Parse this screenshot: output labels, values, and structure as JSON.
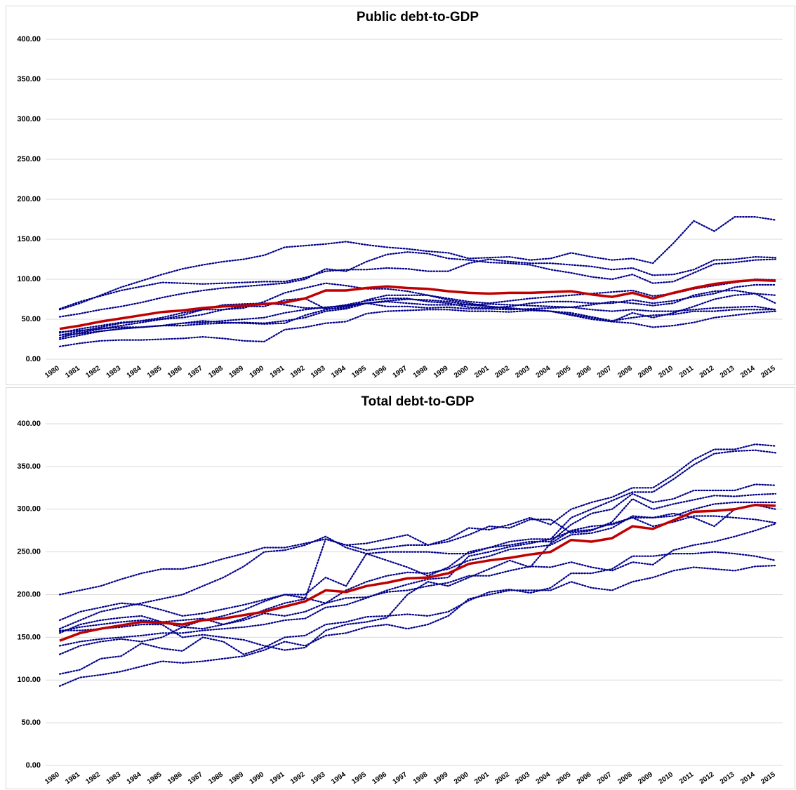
{
  "chart_data": [
    {
      "type": "line",
      "title": "Public debt-to-GDP",
      "categories": [
        "1980",
        "1981",
        "1982",
        "1983",
        "1984",
        "1985",
        "1986",
        "1987",
        "1988",
        "1989",
        "1990",
        "1991",
        "1992",
        "1993",
        "1994",
        "1995",
        "1996",
        "1997",
        "1998",
        "1999",
        "2000",
        "2001",
        "2002",
        "2003",
        "2004",
        "2005",
        "2006",
        "2007",
        "2008",
        "2009",
        "2010",
        "2011",
        "2012",
        "2013",
        "2014",
        "2015"
      ],
      "ylim": [
        0,
        400
      ],
      "yticks": [
        {
          "value": 0,
          "label": "0.00"
        },
        {
          "value": 50,
          "label": "50.00"
        },
        {
          "value": 100,
          "label": "100.00"
        },
        {
          "value": 150,
          "label": "150.00"
        },
        {
          "value": 200,
          "label": "200.00"
        },
        {
          "value": 250,
          "label": "250.00"
        },
        {
          "value": 300,
          "label": "300.00"
        },
        {
          "value": 350,
          "label": "350.00"
        },
        {
          "value": 400,
          "label": "400.00"
        }
      ],
      "grid": true,
      "series": [
        {
          "color": "#00008b",
          "style": "dotted",
          "values": [
            62,
            70,
            80,
            90,
            98,
            106,
            113,
            118,
            122,
            125,
            130,
            140,
            142,
            144,
            147,
            143,
            140,
            138,
            135,
            133,
            126,
            127,
            128,
            124,
            126,
            133,
            128,
            124,
            126,
            120,
            145,
            173,
            160,
            178,
            178,
            174
          ]
        },
        {
          "color": "#00008b",
          "style": "dotted",
          "values": [
            63,
            72,
            79,
            86,
            91,
            96,
            95,
            94,
            95,
            96,
            97,
            97,
            102,
            110,
            112,
            112,
            114,
            113,
            110,
            110,
            120,
            125,
            122,
            120,
            120,
            118,
            116,
            112,
            114,
            105,
            106,
            112,
            124,
            125,
            128,
            127
          ]
        },
        {
          "color": "#00008b",
          "style": "dotted",
          "values": [
            53,
            57,
            62,
            66,
            71,
            77,
            82,
            86,
            89,
            91,
            93,
            95,
            100,
            113,
            110,
            122,
            131,
            134,
            132,
            126,
            124,
            121,
            120,
            118,
            112,
            108,
            103,
            100,
            106,
            95,
            97,
            108,
            119,
            121,
            124,
            125
          ]
        },
        {
          "color": "#00008b",
          "style": "dotted",
          "values": [
            33,
            38,
            42,
            46,
            48,
            52,
            58,
            62,
            62,
            64,
            72,
            83,
            89,
            95,
            92,
            88,
            88,
            85,
            80,
            76,
            72,
            70,
            73,
            76,
            78,
            80,
            82,
            84,
            86,
            79,
            82,
            88,
            92,
            96,
            100,
            99
          ]
        },
        {
          "color": "#00008b",
          "style": "dotted",
          "values": [
            30,
            35,
            40,
            45,
            48,
            50,
            52,
            56,
            62,
            66,
            66,
            74,
            76,
            63,
            64,
            74,
            80,
            80,
            80,
            74,
            70,
            66,
            63,
            62,
            60,
            56,
            52,
            47,
            58,
            52,
            58,
            66,
            75,
            80,
            82,
            80
          ]
        },
        {
          "color": "#00008b",
          "style": "dotted",
          "values": [
            27,
            33,
            38,
            42,
            46,
            50,
            55,
            62,
            68,
            69,
            70,
            68,
            64,
            64,
            68,
            73,
            76,
            76,
            72,
            70,
            65,
            64,
            66,
            70,
            72,
            72,
            70,
            70,
            74,
            70,
            73,
            78,
            82,
            90,
            93,
            93
          ]
        },
        {
          "color": "#00008b",
          "style": "dotted",
          "values": [
            25,
            30,
            35,
            38,
            40,
            42,
            42,
            44,
            45,
            46,
            45,
            48,
            52,
            60,
            63,
            70,
            73,
            75,
            74,
            72,
            68,
            66,
            64,
            62,
            60,
            55,
            50,
            47,
            45,
            40,
            42,
            46,
            52,
            55,
            58,
            60
          ]
        },
        {
          "color": "#00008b",
          "style": "dotted",
          "values": [
            34,
            36,
            38,
            40,
            40,
            42,
            45,
            48,
            46,
            45,
            44,
            45,
            55,
            62,
            66,
            70,
            66,
            66,
            64,
            65,
            63,
            63,
            62,
            63,
            64,
            65,
            62,
            60,
            62,
            60,
            60,
            62,
            64,
            65,
            66,
            62
          ]
        },
        {
          "color": "#00008b",
          "style": "dotted",
          "values": [
            16,
            20,
            23,
            24,
            24,
            25,
            26,
            28,
            26,
            23,
            22,
            37,
            40,
            45,
            47,
            57,
            60,
            61,
            62,
            62,
            60,
            60,
            59,
            61,
            60,
            58,
            53,
            48,
            52,
            55,
            56,
            60,
            60,
            62,
            62,
            62
          ]
        },
        {
          "color": "#00008b",
          "style": "dotted",
          "values": [
            30,
            32,
            35,
            38,
            40,
            42,
            45,
            46,
            48,
            50,
            52,
            58,
            62,
            65,
            67,
            70,
            72,
            70,
            68,
            68,
            68,
            69,
            68,
            67,
            66,
            65,
            68,
            72,
            70,
            67,
            70,
            80,
            85,
            86,
            82,
            70
          ]
        },
        {
          "color": "#c00000",
          "style": "solid",
          "values": [
            38,
            42,
            47,
            51,
            55,
            59,
            61,
            64,
            66,
            67,
            69,
            71,
            76,
            86,
            86,
            89,
            91,
            89,
            88,
            85,
            83,
            82,
            83,
            83,
            84,
            85,
            81,
            78,
            83,
            76,
            83,
            89,
            94,
            97,
            99,
            98
          ]
        }
      ]
    },
    {
      "type": "line",
      "title": "Total debt-to-GDP",
      "categories": [
        "1980",
        "1981",
        "1982",
        "1983",
        "1984",
        "1985",
        "1986",
        "1987",
        "1988",
        "1989",
        "1990",
        "1991",
        "1992",
        "1993",
        "1994",
        "1995",
        "1996",
        "1997",
        "1998",
        "1999",
        "2000",
        "2001",
        "2002",
        "2003",
        "2004",
        "2005",
        "2006",
        "2007",
        "2008",
        "2009",
        "2010",
        "2011",
        "2012",
        "2013",
        "2014",
        "2015"
      ],
      "ylim": [
        0,
        400
      ],
      "yticks": [
        {
          "value": 0,
          "label": "0.00"
        },
        {
          "value": 50,
          "label": "50.00"
        },
        {
          "value": 100,
          "label": "100.00"
        },
        {
          "value": 150,
          "label": "150.00"
        },
        {
          "value": 200,
          "label": "200.00"
        },
        {
          "value": 250,
          "label": "250.00"
        },
        {
          "value": 300,
          "label": "300.00"
        },
        {
          "value": 350,
          "label": "350.00"
        },
        {
          "value": 400,
          "label": "400.00"
        }
      ],
      "grid": true,
      "series": [
        {
          "color": "#00008b",
          "style": "dotted",
          "values": [
            200,
            205,
            210,
            218,
            225,
            230,
            230,
            235,
            242,
            248,
            255,
            255,
            260,
            265,
            258,
            260,
            265,
            270,
            258,
            265,
            278,
            276,
            282,
            290,
            282,
            300,
            308,
            314,
            325,
            325,
            340,
            358,
            370,
            370,
            376,
            374
          ]
        },
        {
          "color": "#00008b",
          "style": "dotted",
          "values": [
            170,
            180,
            185,
            190,
            188,
            182,
            175,
            178,
            183,
            188,
            194,
            200,
            200,
            220,
            210,
            248,
            250,
            250,
            250,
            248,
            248,
            255,
            262,
            265,
            265,
            290,
            300,
            310,
            320,
            320,
            335,
            352,
            365,
            368,
            369,
            366
          ]
        },
        {
          "color": "#00008b",
          "style": "dotted",
          "values": [
            160,
            170,
            180,
            185,
            190,
            195,
            200,
            210,
            220,
            233,
            250,
            252,
            258,
            268,
            255,
            248,
            240,
            232,
            222,
            232,
            250,
            255,
            258,
            262,
            262,
            282,
            295,
            300,
            318,
            308,
            312,
            322,
            322,
            322,
            329,
            328
          ]
        },
        {
          "color": "#00008b",
          "style": "dotted",
          "values": [
            157,
            162,
            165,
            168,
            170,
            168,
            162,
            160,
            165,
            172,
            182,
            190,
            195,
            265,
            258,
            252,
            255,
            258,
            258,
            262,
            270,
            280,
            278,
            288,
            288,
            272,
            275,
            285,
            312,
            300,
            306,
            311,
            316,
            315,
            317,
            318
          ]
        },
        {
          "color": "#00008b",
          "style": "dotted",
          "values": [
            155,
            165,
            170,
            173,
            175,
            168,
            170,
            172,
            165,
            170,
            178,
            175,
            180,
            190,
            205,
            215,
            222,
            226,
            225,
            230,
            240,
            245,
            253,
            255,
            258,
            270,
            272,
            278,
            292,
            290,
            292,
            300,
            306,
            308,
            308,
            308
          ]
        },
        {
          "color": "#00008b",
          "style": "dotted",
          "values": [
            140,
            145,
            148,
            150,
            152,
            155,
            155,
            158,
            160,
            162,
            165,
            170,
            172,
            185,
            188,
            196,
            205,
            212,
            218,
            220,
            245,
            250,
            256,
            260,
            265,
            274,
            276,
            283,
            290,
            280,
            285,
            292,
            292,
            290,
            288,
            284
          ]
        },
        {
          "color": "#00008b",
          "style": "dotted",
          "values": [
            130,
            140,
            145,
            148,
            145,
            150,
            162,
            170,
            175,
            182,
            192,
            200,
            196,
            190,
            196,
            197,
            203,
            205,
            210,
            214,
            222,
            222,
            228,
            233,
            232,
            238,
            232,
            228,
            238,
            235,
            252,
            258,
            262,
            268,
            275,
            283
          ]
        },
        {
          "color": "#00008b",
          "style": "dotted",
          "values": [
            107,
            112,
            125,
            128,
            143,
            137,
            134,
            150,
            145,
            130,
            138,
            150,
            152,
            165,
            168,
            174,
            175,
            177,
            175,
            180,
            193,
            203,
            206,
            202,
            208,
            225,
            225,
            230,
            245,
            245,
            248,
            248,
            250,
            248,
            245,
            240
          ]
        },
        {
          "color": "#00008b",
          "style": "dotted",
          "values": [
            93,
            103,
            106,
            110,
            116,
            122,
            120,
            122,
            125,
            128,
            135,
            145,
            140,
            152,
            155,
            162,
            165,
            160,
            165,
            175,
            195,
            200,
            205,
            205,
            205,
            215,
            208,
            205,
            215,
            220,
            228,
            232,
            230,
            228,
            233,
            234
          ]
        },
        {
          "color": "#00008b",
          "style": "dotted",
          "values": [
            158,
            158,
            160,
            162,
            165,
            165,
            150,
            153,
            150,
            147,
            140,
            135,
            138,
            158,
            165,
            168,
            173,
            200,
            215,
            210,
            220,
            230,
            240,
            232,
            260,
            275,
            280,
            282,
            290,
            290,
            295,
            290,
            280,
            300,
            305,
            300
          ]
        },
        {
          "color": "#c00000",
          "style": "solid",
          "values": [
            146,
            155,
            160,
            164,
            168,
            167,
            165,
            170,
            172,
            176,
            180,
            186,
            192,
            205,
            203,
            210,
            214,
            219,
            220,
            225,
            236,
            240,
            243,
            247,
            250,
            264,
            262,
            266,
            280,
            277,
            287,
            297,
            298,
            300,
            305,
            304
          ]
        }
      ]
    }
  ]
}
